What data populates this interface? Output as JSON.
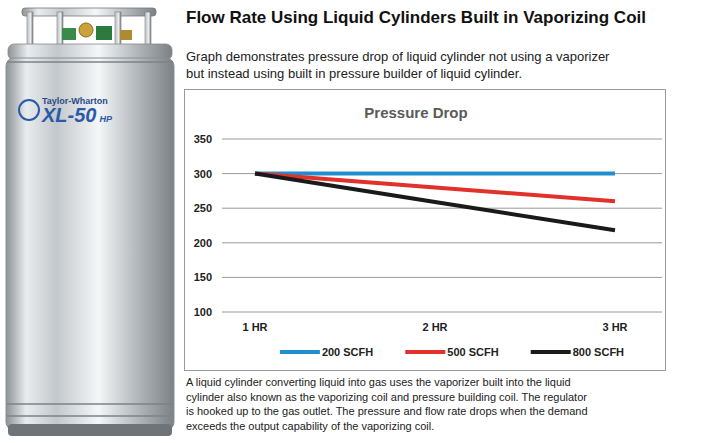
{
  "page": {
    "heading": "Flow Rate Using Liquid Cylinders Built in Vaporizing Coil",
    "intro": [
      "Graph demonstrates pressure drop of liquid cylinder not using a vaporizer",
      "but instead using built in pressure builder of liquid cylinder."
    ],
    "caption": [
      "A liquid cylinder converting liquid into gas uses the vaporizer built into the liquid",
      "cylinder also known as the vaporizing coil and pressure building coil. The regulator",
      "is hooked up to the gas outlet. The pressure and flow rate drops when the demand",
      "exceeds the output capability of the vaporizing coil."
    ],
    "cylinder": {
      "brand": "Taylor-Wharton",
      "model": "XL-50",
      "suffix": "HP"
    }
  },
  "chart_data": {
    "type": "line",
    "title": "Pressure Drop",
    "categories": [
      "1 HR",
      "2 HR",
      "3 HR"
    ],
    "series": [
      {
        "name": "200 SCFH",
        "color": "#1f8fd0",
        "values": [
          300,
          300,
          300
        ]
      },
      {
        "name": "500 SCFH",
        "color": "#e2302b",
        "values": [
          300,
          280,
          260
        ]
      },
      {
        "name": "800 SCFH",
        "color": "#1a1a1a",
        "values": [
          300,
          259,
          218
        ]
      }
    ],
    "ylim": [
      100,
      350
    ],
    "yticks": [
      100,
      150,
      200,
      250,
      300,
      350
    ],
    "grid": true,
    "legend": "bottom"
  }
}
